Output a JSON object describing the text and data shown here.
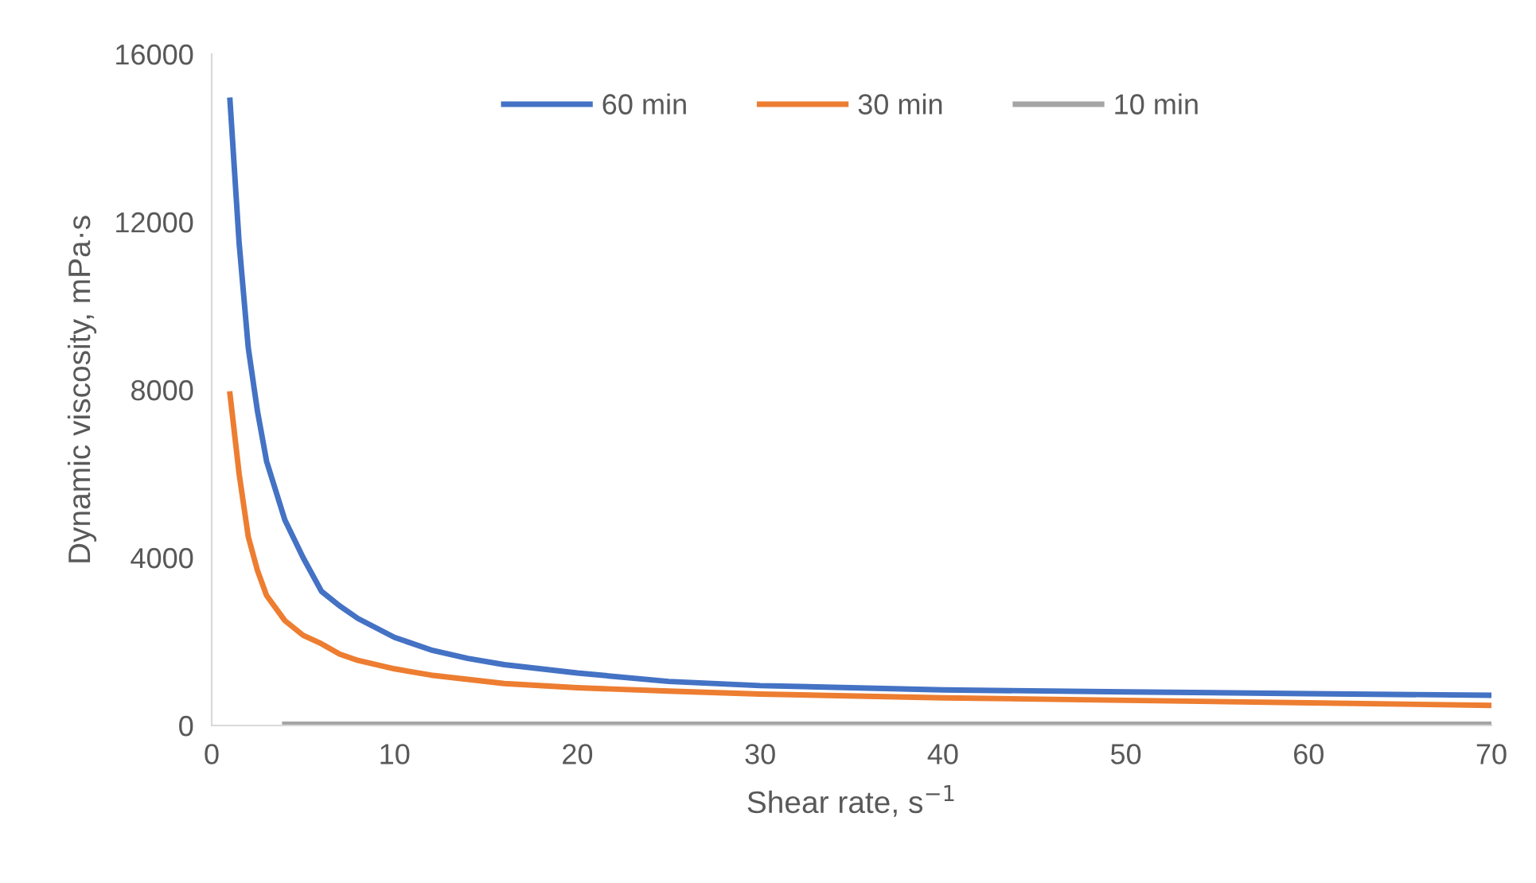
{
  "chart_data": {
    "type": "line",
    "xlabel": "Shear rate, s$^{−1}$",
    "ylabel": "Dynamic viscosity, mPa·s",
    "xlim": [
      0,
      70
    ],
    "xticks": [
      0,
      10,
      20,
      30,
      40,
      50,
      60,
      70
    ],
    "ylim": [
      0,
      16000
    ],
    "yticks": [
      0,
      4000,
      8000,
      12000,
      16000
    ],
    "grid": false,
    "legend": "top",
    "marker": "none",
    "line_style": "solid",
    "series": [
      {
        "name": "60 min",
        "color": "#4472c4",
        "x": [
          1,
          1.5,
          2,
          2.5,
          3,
          4,
          5,
          6,
          7,
          8,
          10,
          12,
          14,
          16,
          20,
          25,
          30,
          40,
          50,
          60,
          70
        ],
        "values": [
          14900,
          11500,
          9000,
          7500,
          6300,
          4900,
          4000,
          3200,
          2850,
          2550,
          2100,
          1800,
          1600,
          1450,
          1250,
          1050,
          950,
          850,
          800,
          760,
          720
        ]
      },
      {
        "name": "30 min",
        "color": "#ed7d31",
        "x": [
          1,
          1.5,
          2,
          2.5,
          3,
          4,
          5,
          6,
          7,
          8,
          10,
          12,
          14,
          16,
          20,
          25,
          30,
          40,
          50,
          60,
          70
        ],
        "values": [
          7900,
          6000,
          4500,
          3700,
          3100,
          2500,
          2150,
          1950,
          1700,
          1550,
          1350,
          1200,
          1100,
          1000,
          900,
          820,
          750,
          660,
          600,
          540,
          480
        ]
      },
      {
        "name": "10 min",
        "color": "#a5a5a5",
        "x": [
          4,
          10,
          20,
          30,
          40,
          50,
          60,
          70
        ],
        "values": [
          30,
          30,
          30,
          30,
          30,
          30,
          30,
          30
        ]
      }
    ]
  }
}
